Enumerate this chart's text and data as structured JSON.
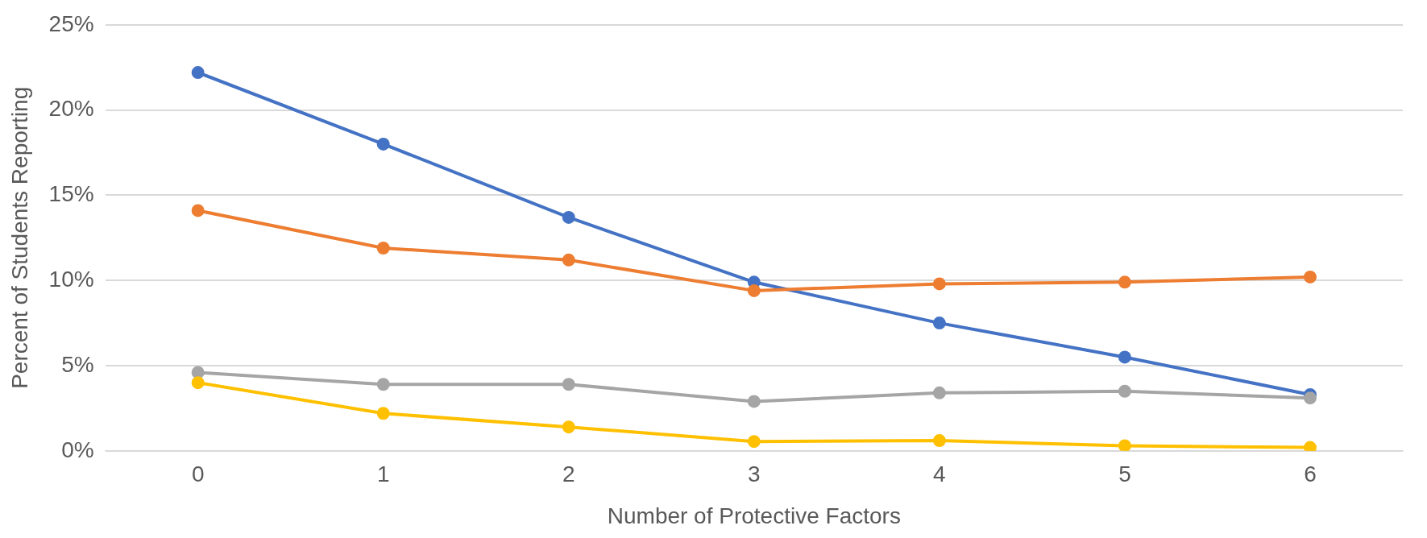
{
  "chart_data": {
    "type": "line",
    "xlabel": "Number of Protective Factors",
    "ylabel": "Percent of Students Reporting",
    "categories": [
      "0",
      "1",
      "2",
      "3",
      "4",
      "5",
      "6"
    ],
    "series": [
      {
        "color": "#4472c4",
        "values": [
          22.2,
          18.0,
          13.7,
          9.9,
          7.5,
          5.5,
          3.3
        ]
      },
      {
        "color": "#ed7d31",
        "values": [
          14.1,
          11.9,
          11.2,
          9.4,
          9.8,
          9.9,
          10.2
        ]
      },
      {
        "color": "#a5a5a5",
        "values": [
          4.6,
          3.9,
          3.9,
          2.9,
          3.4,
          3.5,
          3.1
        ]
      },
      {
        "color": "#ffc000",
        "values": [
          4.0,
          2.2,
          1.4,
          0.55,
          0.6,
          0.3,
          0.2
        ]
      }
    ],
    "ylim": [
      0,
      25
    ],
    "yticks": [
      {
        "value": 0,
        "label": "0%"
      },
      {
        "value": 5,
        "label": "5%"
      },
      {
        "value": 10,
        "label": "10%"
      },
      {
        "value": 15,
        "label": "15%"
      },
      {
        "value": 20,
        "label": "20%"
      },
      {
        "value": 25,
        "label": "25%"
      }
    ],
    "grid": "y",
    "legend": false,
    "marker": "circle",
    "line_style": "solid"
  }
}
